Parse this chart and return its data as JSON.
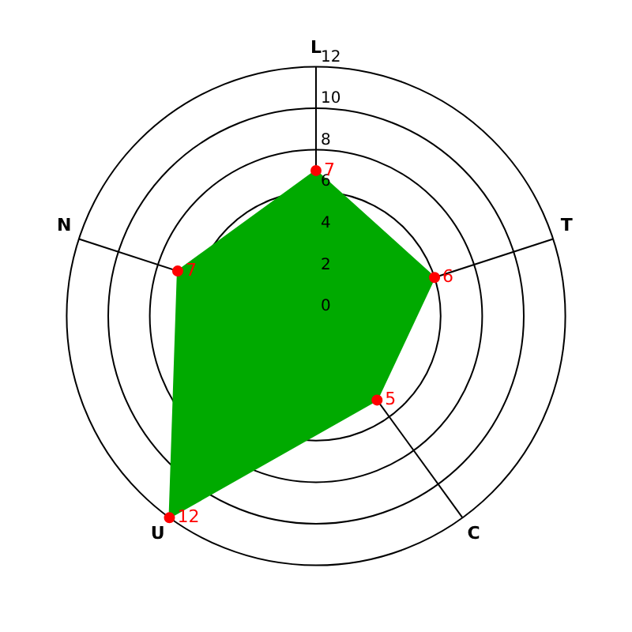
{
  "chart_data": {
    "type": "radar",
    "categories": [
      "L",
      "T",
      "C",
      "U",
      "N"
    ],
    "series": [
      {
        "color": "#00aa00",
        "values": [
          7,
          6,
          5,
          12,
          7
        ]
      }
    ],
    "ylim": [
      0,
      12
    ],
    "yticks": [
      0,
      2,
      4,
      6,
      8,
      10,
      12
    ],
    "grid": true,
    "marker": "circle",
    "data_labels": true,
    "legend": false
  }
}
